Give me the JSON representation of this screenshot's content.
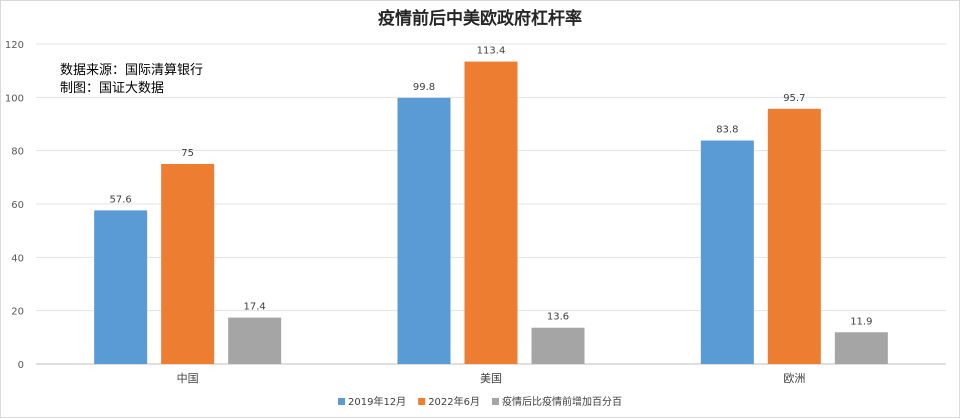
{
  "chart_data": {
    "type": "bar",
    "title": "疫情前后中美欧政府杠杆率",
    "xlabel": "",
    "ylabel": "",
    "categories": [
      "中国",
      "美国",
      "欧洲"
    ],
    "series": [
      {
        "name": "2019年12月",
        "values": [
          57.6,
          99.8,
          83.8
        ]
      },
      {
        "name": "2022年6月",
        "values": [
          75,
          113.4,
          95.7
        ]
      },
      {
        "name": "疫情后比疫情前增加百分百",
        "values": [
          17.4,
          13.6,
          11.9
        ]
      }
    ],
    "ylim": [
      0,
      120
    ],
    "yticks": [
      0,
      20,
      40,
      60,
      80,
      100,
      120
    ],
    "grid": true,
    "legend": "bottom-center",
    "annotations": [
      "数据来源：国际清算银行",
      "制图：国证大数据"
    ],
    "colors": [
      "#5b9bd5",
      "#ed7d31",
      "#a5a5a5"
    ]
  }
}
